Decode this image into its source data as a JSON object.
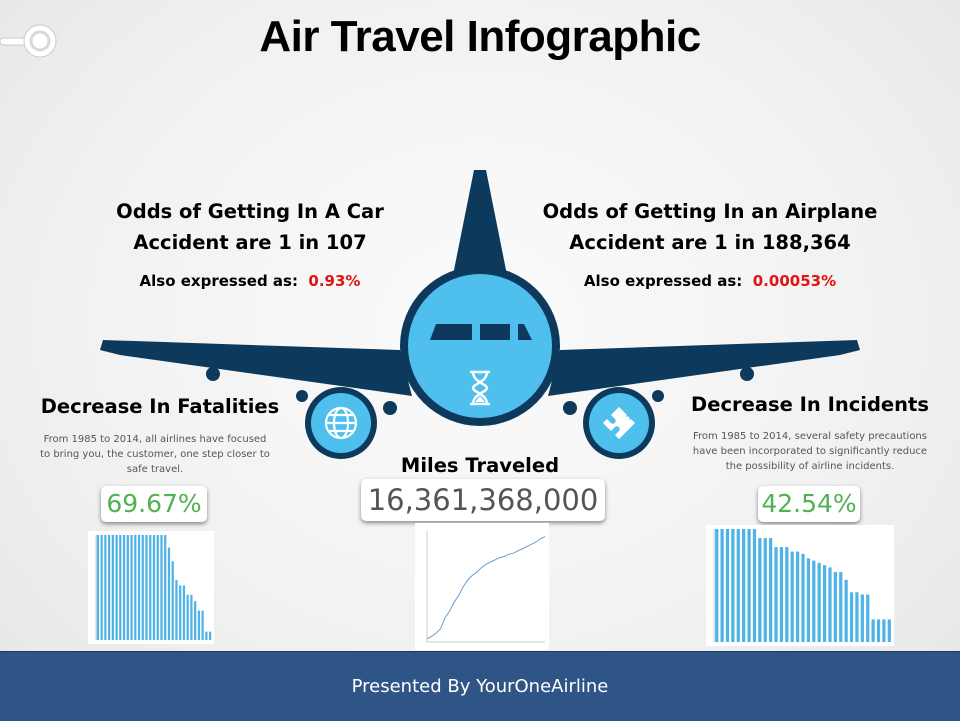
{
  "title": "Air Travel Infographic",
  "car": {
    "line1": "Odds of Getting In A Car",
    "line2": "Accident are 1 in 107",
    "also_label": "Also expressed as:",
    "also_value": "0.93%"
  },
  "airplane": {
    "line1": "Odds of Getting In an Airplane",
    "line2": "Accident are 1 in 188,364",
    "also_label": "Also expressed as:",
    "also_value": "0.00053%"
  },
  "fatalities": {
    "heading": "Decrease In Fatalities",
    "description_lines": [
      "From 1985 to 2014, all airlines have focused",
      "to bring you, the customer, one step closer to",
      "safe travel."
    ],
    "percent": "69.67%"
  },
  "miles": {
    "heading": "Miles Traveled",
    "value": "16,361,368,000"
  },
  "incidents": {
    "heading": "Decrease In Incidents",
    "description_lines": [
      "From 1985 to 2014, several safety precautions",
      "have been incorporated to significantly reduce",
      "the possibility of airline incidents."
    ],
    "percent": "42.54%"
  },
  "footer": {
    "text": "Presented By YourOneAirline"
  },
  "colors": {
    "plane": "#0d3a5c",
    "window": "#4fc0ee",
    "bars": "#4fb3e6",
    "footer": "#2f5587",
    "red": "#e01414",
    "green": "#52b152"
  },
  "icons": {
    "left_engine": "globe-icon",
    "right_engine": "puzzle-icon",
    "cockpit": "hourglass-icon",
    "top_left": "key-ring-icon"
  },
  "chart_data": [
    {
      "type": "bar",
      "values": [
        100,
        100,
        100,
        100,
        100,
        100,
        100,
        100,
        100,
        100,
        100,
        100,
        100,
        100,
        100,
        100,
        100,
        100,
        100,
        88,
        75,
        57,
        52,
        52,
        43,
        43,
        37,
        28,
        28,
        8,
        8
      ]
    },
    {
      "type": "line",
      "values": [
        3,
        5,
        8,
        12,
        22,
        28,
        36,
        42,
        50,
        56,
        60,
        63,
        67,
        70,
        72,
        74,
        76,
        77,
        79,
        80,
        82,
        84,
        86,
        88,
        90,
        93,
        95
      ]
    },
    {
      "type": "bar",
      "values": [
        100,
        100,
        100,
        100,
        100,
        100,
        100,
        100,
        92,
        92,
        92,
        84,
        84,
        84,
        80,
        80,
        78,
        74,
        72,
        70,
        68,
        66,
        62,
        62,
        55,
        44,
        44,
        42,
        42,
        20,
        20,
        20,
        20
      ]
    }
  ]
}
